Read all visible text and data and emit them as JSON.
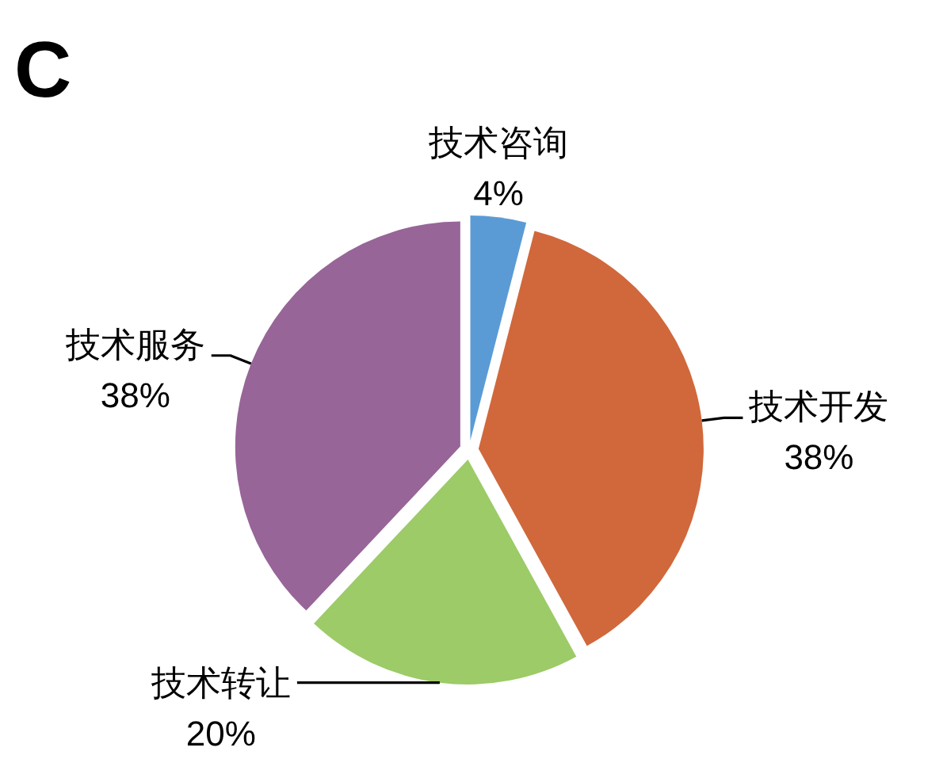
{
  "chart_data": {
    "type": "pie",
    "title": "C",
    "categories": [
      "技术咨询",
      "技术开发",
      "技术转让",
      "技术服务"
    ],
    "values": [
      4,
      38,
      20,
      38
    ],
    "colors": [
      "#5b9bd5",
      "#d0683c",
      "#9ccb68",
      "#976598"
    ],
    "value_labels": [
      "4%",
      "38%",
      "20%",
      "38%"
    ]
  }
}
